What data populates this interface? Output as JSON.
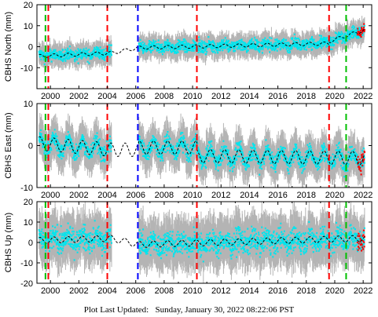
{
  "footer": {
    "label": "Plot Last Updated:",
    "value": "Sunday, January 30, 2022 08:22:06 PST"
  },
  "colors": {
    "error_bars": "#b4b4b4",
    "daily_points": "#00e5ee",
    "model_curve": "#000000",
    "recent_points": "#ff0000",
    "line_equipment": "#ff0000",
    "line_antenna": "#0000ff",
    "line_other": "#00c000"
  },
  "chart_data": [
    {
      "type": "scatter",
      "ylabel": "CBHS North (mm)",
      "xlim": [
        1999.05,
        2022.6
      ],
      "ylim": [
        -20,
        20
      ],
      "yticks": [
        -10,
        0,
        10,
        20
      ],
      "xticks": [
        "2000",
        "2002",
        "2004",
        "2006",
        "2008",
        "2010",
        "2012",
        "2014",
        "2016",
        "2018",
        "2020",
        "2022"
      ],
      "data_gap": [
        2004.3,
        2006.2
      ],
      "vertical_lines": [
        {
          "x": 1999.65,
          "color": "#00c000"
        },
        {
          "x": 1999.85,
          "color": "#ff0000"
        },
        {
          "x": 2004.0,
          "color": "#ff0000"
        },
        {
          "x": 2006.15,
          "color": "#0000ff"
        },
        {
          "x": 2010.3,
          "color": "#ff0000"
        },
        {
          "x": 2019.6,
          "color": "#ff0000"
        },
        {
          "x": 2020.8,
          "color": "#00c000"
        }
      ],
      "trend_segments": [
        {
          "x": [
            1999.2,
            2004.3
          ],
          "y": [
            -4.5,
            -3.0
          ]
        },
        {
          "x": [
            2004.3,
            2006.2
          ],
          "y": [
            -3.0,
            -0.5
          ]
        },
        {
          "x": [
            2006.2,
            2019.6
          ],
          "y": [
            -0.5,
            1.5
          ]
        },
        {
          "x": [
            2019.6,
            2022.1
          ],
          "y": [
            2.5,
            8.0
          ]
        }
      ],
      "seasonal_amplitude": 0.8,
      "scatter_spread": 2.5,
      "error_bar_size": 4.0
    },
    {
      "type": "scatter",
      "ylabel": "CBHS East  (mm)",
      "xlim": [
        1999.05,
        2022.6
      ],
      "ylim": [
        -10,
        10
      ],
      "yticks": [
        -10,
        0,
        10
      ],
      "xticks": [
        "2000",
        "2002",
        "2004",
        "2006",
        "2008",
        "2010",
        "2012",
        "2014",
        "2016",
        "2018",
        "2020",
        "2022"
      ],
      "data_gap": [
        2004.3,
        2006.2
      ],
      "vertical_lines": [
        {
          "x": 1999.65,
          "color": "#00c000"
        },
        {
          "x": 1999.85,
          "color": "#ff0000"
        },
        {
          "x": 2004.0,
          "color": "#ff0000"
        },
        {
          "x": 2006.15,
          "color": "#0000ff"
        },
        {
          "x": 2010.3,
          "color": "#ff0000"
        },
        {
          "x": 2019.6,
          "color": "#ff0000"
        },
        {
          "x": 2020.8,
          "color": "#00c000"
        }
      ],
      "trend_segments": [
        {
          "x": [
            1999.2,
            2004.3
          ],
          "y": [
            0.5,
            -1.0
          ]
        },
        {
          "x": [
            2004.3,
            2006.2
          ],
          "y": [
            -1.0,
            -1.0
          ]
        },
        {
          "x": [
            2006.2,
            2010.3
          ],
          "y": [
            -0.5,
            -0.5
          ]
        },
        {
          "x": [
            2010.3,
            2022.1
          ],
          "y": [
            -2.5,
            -3.0
          ]
        }
      ],
      "seasonal_amplitude": 1.6,
      "scatter_spread": 1.8,
      "error_bar_size": 3.5
    },
    {
      "type": "scatter",
      "ylabel": "CBHS Up (mm)",
      "xlim": [
        1999.05,
        2022.6
      ],
      "ylim": [
        -20,
        20
      ],
      "yticks": [
        -20,
        -10,
        0,
        10,
        20
      ],
      "xticks": [
        "2000",
        "2002",
        "2004",
        "2006",
        "2008",
        "2010",
        "2012",
        "2014",
        "2016",
        "2018",
        "2020",
        "2022"
      ],
      "data_gap": [
        2004.3,
        2006.2
      ],
      "vertical_lines": [
        {
          "x": 1999.65,
          "color": "#00c000"
        },
        {
          "x": 1999.85,
          "color": "#ff0000"
        },
        {
          "x": 2004.0,
          "color": "#ff0000"
        },
        {
          "x": 2006.15,
          "color": "#0000ff"
        },
        {
          "x": 2010.3,
          "color": "#ff0000"
        },
        {
          "x": 2019.6,
          "color": "#ff0000"
        },
        {
          "x": 2020.8,
          "color": "#00c000"
        }
      ],
      "trend_segments": [
        {
          "x": [
            1999.2,
            2004.3
          ],
          "y": [
            1.0,
            2.0
          ]
        },
        {
          "x": [
            2004.3,
            2006.2
          ],
          "y": [
            2.0,
            -1.0
          ]
        },
        {
          "x": [
            2006.2,
            2022.1
          ],
          "y": [
            -1.0,
            2.0
          ]
        }
      ],
      "seasonal_amplitude": 1.5,
      "scatter_spread": 5.0,
      "error_bar_size": 9.0
    }
  ]
}
